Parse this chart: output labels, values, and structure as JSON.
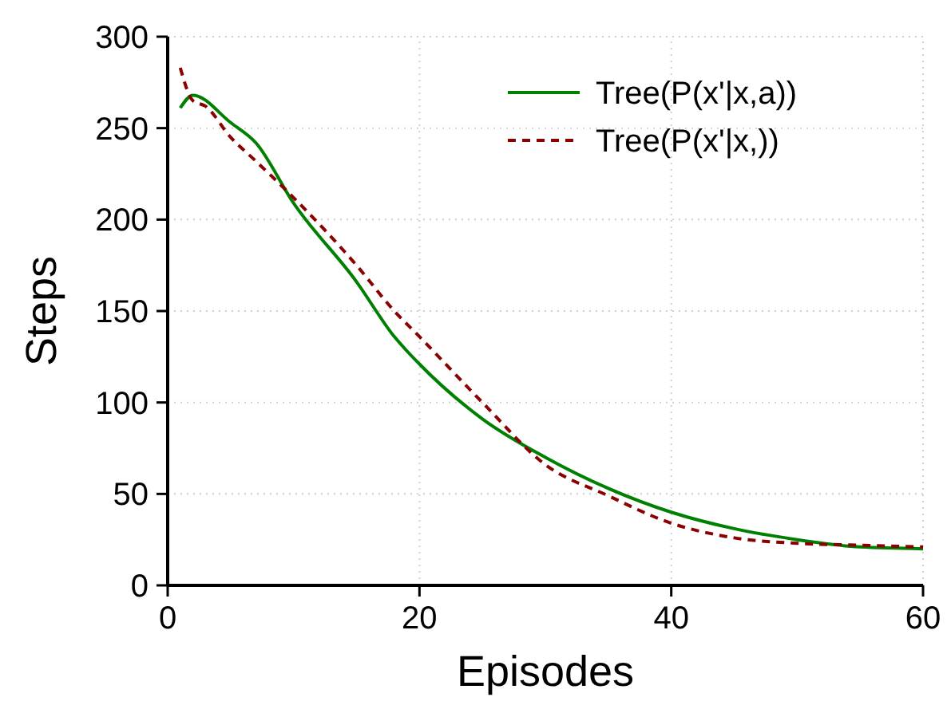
{
  "chart_data": {
    "type": "line",
    "xlabel": "Episodes",
    "ylabel": "Steps",
    "xlim": [
      0,
      60
    ],
    "xticks": [
      0,
      20,
      40,
      60
    ],
    "ylim": [
      0,
      300
    ],
    "yticks": [
      0,
      50,
      100,
      150,
      200,
      250,
      300
    ],
    "grid": true,
    "legend": "top right",
    "marker": "none",
    "series": [
      {
        "name": "Tree(P(x'|x,a))",
        "color": "#008000",
        "line_style": "solid",
        "x": [
          1,
          2,
          5,
          7,
          10,
          15,
          18,
          20,
          25,
          30,
          35,
          40,
          45,
          50,
          55,
          60
        ],
        "values": [
          261,
          268,
          253,
          242,
          209,
          166,
          136,
          121,
          91,
          70,
          53,
          40,
          31,
          25,
          21,
          20
        ]
      },
      {
        "name": "Tree(P(x'|x,))",
        "color": "#8b0000",
        "line_style": "dashed",
        "x": [
          1,
          2,
          3,
          5,
          7,
          10,
          15,
          18,
          20,
          25,
          30,
          35,
          40,
          45,
          50,
          55,
          60
        ],
        "values": [
          283,
          265,
          262,
          245,
          232,
          212,
          175,
          150,
          136,
          100,
          66,
          49,
          34,
          26,
          23,
          22,
          21
        ]
      }
    ]
  }
}
